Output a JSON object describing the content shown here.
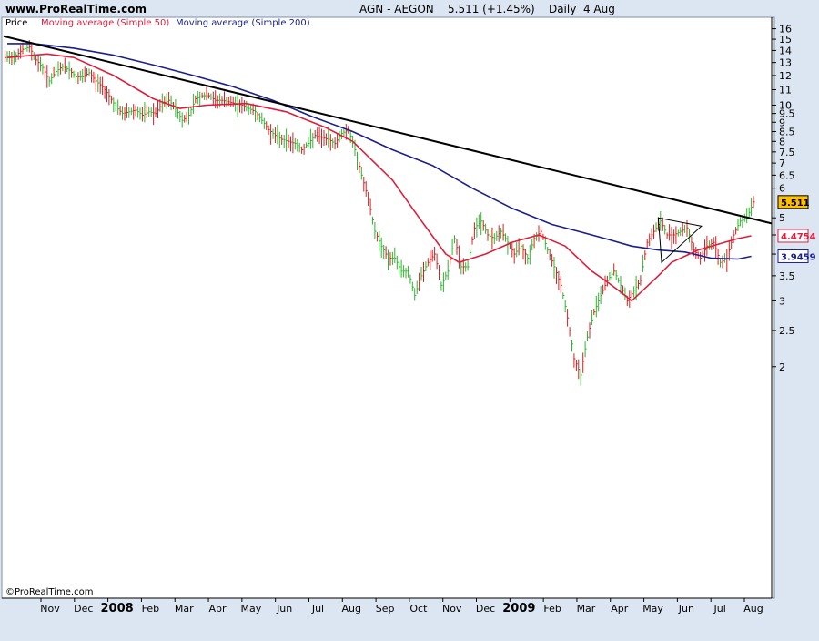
{
  "header": {
    "site": "www.ProRealTime.com",
    "title": "AGN - AEGON    5.511 (+1.45%)    Daily  4 Aug"
  },
  "legend": {
    "price": "Price",
    "ma50": "Moving average (Simple 50)",
    "ma200": "Moving average (Simple 200)"
  },
  "watermark": "©ProRealTime.com",
  "colors": {
    "background": "#ffffff",
    "frame": "#dce6f2",
    "up_bar": "#2db52d",
    "down_bar": "#d42020",
    "ma50": "#dc1e3c",
    "ma200": "#1a1f8c",
    "trendline": "#000000",
    "price_tag": "#ffc000"
  },
  "chart_data": {
    "type": "line",
    "title": "AGN - AEGON",
    "xlabel": "",
    "ylabel": "",
    "scale": "log",
    "ylim": [
      1.75,
      16.5
    ],
    "y_ticks": [
      2,
      2.5,
      3,
      3.5,
      4,
      4.5,
      5,
      6,
      6.5,
      7,
      7.5,
      8,
      8.5,
      9,
      9.5,
      10,
      11,
      12,
      13,
      14,
      15,
      16
    ],
    "x_labels": [
      "Nov",
      "Dec",
      "2008",
      "Feb",
      "Mar",
      "Apr",
      "May",
      "Jun",
      "Jul",
      "Aug",
      "Sep",
      "Oct",
      "Nov",
      "Dec",
      "2009",
      "Feb",
      "Mar",
      "Apr",
      "May",
      "Jun",
      "Jul",
      "Aug"
    ],
    "last_price": "5.511",
    "ma50_last": "4.4754",
    "ma200_last": "3.9459",
    "series": [
      {
        "name": "Price",
        "style": "ohlc-bars",
        "closes": [
          13.4,
          13.6,
          14.1,
          14.3,
          13.2,
          12.6,
          11.6,
          12.3,
          12.7,
          12.4,
          11.9,
          11.9,
          12.2,
          11.6,
          11.2,
          10.6,
          9.9,
          9.5,
          9.6,
          9.7,
          9.4,
          9.6,
          9.5,
          10.1,
          10.3,
          9.8,
          9.1,
          9.4,
          10.4,
          10.6,
          10.6,
          10.3,
          10.3,
          10.2,
          10.1,
          10.0,
          9.8,
          9.6,
          9.1,
          8.6,
          8.3,
          8.1,
          8.0,
          7.9,
          7.6,
          7.9,
          8.3,
          8.2,
          8.1,
          7.9,
          8.4,
          8.6,
          7.6,
          6.5,
          5.6,
          4.6,
          4.2,
          3.9,
          3.9,
          3.6,
          3.6,
          3.1,
          3.5,
          3.8,
          4.0,
          3.3,
          3.6,
          4.4,
          3.7,
          3.7,
          4.7,
          4.9,
          4.5,
          4.4,
          4.6,
          4.3,
          4.0,
          4.2,
          3.9,
          4.4,
          4.6,
          4.1,
          3.7,
          3.3,
          2.7,
          2.1,
          1.9,
          2.4,
          2.8,
          3.1,
          3.4,
          3.6,
          3.3,
          3.0,
          3.2,
          3.4,
          4.3,
          4.6,
          4.9,
          4.5,
          4.5,
          4.6,
          4.7,
          4.1,
          3.9,
          4.2,
          4.3,
          3.8,
          3.9,
          4.5,
          4.9,
          5.0,
          5.51
        ]
      },
      {
        "name": "Moving average (Simple 50)",
        "x": [
          0,
          6,
          10,
          16,
          22,
          26,
          30,
          36,
          42,
          48,
          52,
          58,
          62,
          66,
          68,
          72,
          76,
          80,
          84,
          88,
          90,
          92,
          94,
          98,
          100,
          104,
          108,
          110,
          112
        ],
        "values": [
          13.4,
          13.7,
          13.4,
          12.0,
          10.4,
          9.8,
          10.0,
          10.1,
          9.6,
          8.7,
          8.0,
          6.3,
          5.0,
          4.0,
          3.8,
          4.0,
          4.3,
          4.5,
          4.2,
          3.6,
          3.4,
          3.2,
          3.0,
          3.5,
          3.8,
          4.1,
          4.3,
          4.4,
          4.4754
        ]
      },
      {
        "name": "Moving average (Simple 200)",
        "x": [
          0,
          4,
          10,
          16,
          22,
          28,
          34,
          40,
          46,
          52,
          58,
          64,
          70,
          76,
          82,
          86,
          90,
          94,
          98,
          102,
          106,
          110,
          112
        ],
        "values": [
          14.6,
          14.6,
          14.2,
          13.6,
          12.8,
          12.0,
          11.2,
          10.3,
          9.3,
          8.5,
          7.6,
          6.9,
          6.0,
          5.3,
          4.8,
          4.6,
          4.4,
          4.2,
          4.1,
          4.05,
          3.9,
          3.88,
          3.9459
        ]
      },
      {
        "name": "Trendline",
        "x": [
          0,
          112
        ],
        "values": [
          15.2,
          4.98
        ]
      }
    ]
  }
}
